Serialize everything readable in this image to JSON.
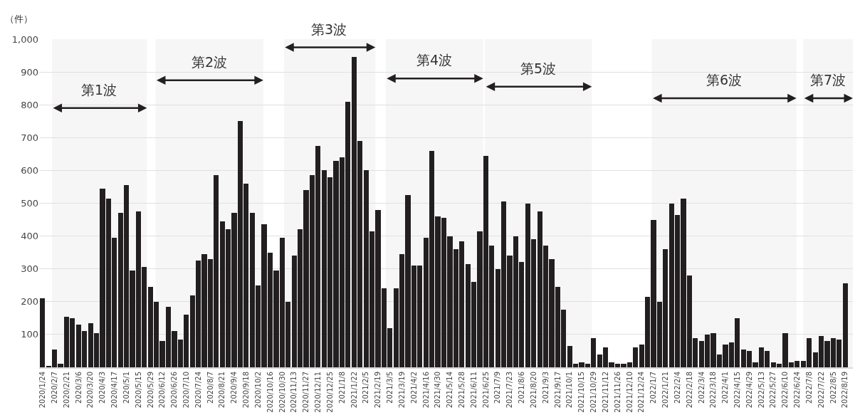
{
  "chart_data": {
    "type": "bar",
    "ylabel": "（件）",
    "color": "#231f20",
    "grid": "y",
    "x": [
      "2020-01-24",
      "2020-01-31",
      "2020-02-07",
      "2020-02-14",
      "2020-02-21",
      "2020-02-28",
      "2020-03-06",
      "2020-03-13",
      "2020-03-20",
      "2020-03-27",
      "2020-04-03",
      "2020-04-10",
      "2020-04-17",
      "2020-04-24",
      "2020-05-01",
      "2020-05-08",
      "2020-05-15",
      "2020-05-22",
      "2020-05-29",
      "2020-06-05",
      "2020-06-12",
      "2020-06-19",
      "2020-06-26",
      "2020-07-03",
      "2020-07-10",
      "2020-07-17",
      "2020-07-24",
      "2020-07-31",
      "2020-08-07",
      "2020-08-14",
      "2020-08-21",
      "2020-08-28",
      "2020-09-04",
      "2020-09-11",
      "2020-09-18",
      "2020-09-25",
      "2020-10-02",
      "2020-10-09",
      "2020-10-16",
      "2020-10-23",
      "2020-10-30",
      "2020-11-06",
      "2020-11-13",
      "2020-11-20",
      "2020-11-27",
      "2020-12-04",
      "2020-12-11",
      "2020-12-18",
      "2020-12-25",
      "2021-01-01",
      "2021-01-08",
      "2021-01-15",
      "2021-01-22",
      "2021-01-29",
      "2021-02-05",
      "2021-02-12",
      "2021-02-19",
      "2021-02-26",
      "2021-03-05",
      "2021-03-12",
      "2021-03-19",
      "2021-03-26",
      "2021-04-02",
      "2021-04-09",
      "2021-04-16",
      "2021-04-23",
      "2021-04-30",
      "2021-05-07",
      "2021-05-14",
      "2021-05-21",
      "2021-05-28",
      "2021-06-04",
      "2021-06-11",
      "2021-06-18",
      "2021-06-25",
      "2021-07-02",
      "2021-07-09",
      "2021-07-16",
      "2021-07-23",
      "2021-07-30",
      "2021-08-06",
      "2021-08-13",
      "2021-08-20",
      "2021-08-27",
      "2021-09-03",
      "2021-09-10",
      "2021-09-17",
      "2021-09-24",
      "2021-10-01",
      "2021-10-08",
      "2021-10-15",
      "2021-10-22",
      "2021-10-29",
      "2021-11-05",
      "2021-11-12",
      "2021-11-19",
      "2021-11-26",
      "2021-12-03",
      "2021-12-10",
      "2021-12-17",
      "2021-12-24",
      "2021-12-31",
      "2022-01-07",
      "2022-01-14",
      "2022-01-21",
      "2022-01-28",
      "2022-02-04",
      "2022-02-11",
      "2022-02-18",
      "2022-02-25",
      "2022-03-04",
      "2022-03-11",
      "2022-03-18",
      "2022-03-25",
      "2022-04-01",
      "2022-04-08",
      "2022-04-15",
      "2022-04-22",
      "2022-04-29",
      "2022-05-06",
      "2022-05-13",
      "2022-05-20",
      "2022-05-27",
      "2022-06-03",
      "2022-06-10",
      "2022-06-17",
      "2022-06-24",
      "2022-07-01",
      "2022-07-08",
      "2022-07-15",
      "2022-07-22",
      "2022-07-29",
      "2022-08-05",
      "2022-08-12",
      "2022-08-19"
    ],
    "values": [
      210,
      5,
      55,
      10,
      155,
      150,
      130,
      110,
      135,
      105,
      545,
      515,
      395,
      470,
      555,
      295,
      475,
      305,
      245,
      200,
      80,
      185,
      110,
      85,
      160,
      220,
      325,
      345,
      330,
      585,
      445,
      420,
      470,
      750,
      560,
      470,
      250,
      435,
      350,
      295,
      395,
      200,
      340,
      420,
      540,
      585,
      675,
      600,
      580,
      630,
      640,
      810,
      945,
      690,
      600,
      415,
      480,
      240,
      120,
      240,
      345,
      525,
      310,
      310,
      395,
      660,
      460,
      455,
      400,
      360,
      385,
      315,
      260,
      415,
      645,
      370,
      300,
      505,
      340,
      400,
      320,
      500,
      390,
      475,
      370,
      330,
      245,
      175,
      65,
      10,
      15,
      10,
      90,
      40,
      60,
      15,
      10,
      10,
      15,
      60,
      70,
      215,
      450,
      200,
      360,
      500,
      465,
      515,
      280,
      90,
      80,
      100,
      105,
      40,
      70,
      75,
      150,
      55,
      50,
      15,
      60,
      50,
      15,
      10,
      105,
      15,
      20,
      20,
      90,
      45,
      95,
      80,
      90,
      85,
      255
    ],
    "xlim": [
      "2020-01-20",
      "2022-08-28"
    ],
    "xticks": [
      {
        "value": "2020-01-24",
        "label": "2020/1/24"
      },
      {
        "value": "2020-02-07",
        "label": "2020/2/7"
      },
      {
        "value": "2020-02-21",
        "label": "2020/2/21"
      },
      {
        "value": "2020-03-06",
        "label": "2020/3/6"
      },
      {
        "value": "2020-03-20",
        "label": "2020/3/20"
      },
      {
        "value": "2020-04-03",
        "label": "2020/4/3"
      },
      {
        "value": "2020-04-17",
        "label": "2020/4/17"
      },
      {
        "value": "2020-05-01",
        "label": "2020/5/1"
      },
      {
        "value": "2020-05-15",
        "label": "2020/5/15"
      },
      {
        "value": "2020-05-29",
        "label": "2020/5/29"
      },
      {
        "value": "2020-06-12",
        "label": "2020/6/12"
      },
      {
        "value": "2020-06-26",
        "label": "2020/6/26"
      },
      {
        "value": "2020-07-10",
        "label": "2020/7/10"
      },
      {
        "value": "2020-07-24",
        "label": "2020/7/24"
      },
      {
        "value": "2020-08-07",
        "label": "2020/8/7"
      },
      {
        "value": "2020-08-21",
        "label": "2020/8/21"
      },
      {
        "value": "2020-09-04",
        "label": "2020/9/4"
      },
      {
        "value": "2020-09-18",
        "label": "2020/9/18"
      },
      {
        "value": "2020-10-02",
        "label": "2020/10/2"
      },
      {
        "value": "2020-10-16",
        "label": "2020/10/16"
      },
      {
        "value": "2020-10-30",
        "label": "2020/10/30"
      },
      {
        "value": "2020-11-13",
        "label": "2020/11/13"
      },
      {
        "value": "2020-11-27",
        "label": "2020/11/27"
      },
      {
        "value": "2020-12-11",
        "label": "2020/12/11"
      },
      {
        "value": "2020-12-25",
        "label": "2020/12/25"
      },
      {
        "value": "2021-01-08",
        "label": "2021/1/8"
      },
      {
        "value": "2021-01-22",
        "label": "2021/1/22"
      },
      {
        "value": "2021-02-05",
        "label": "2021/2/5"
      },
      {
        "value": "2021-02-19",
        "label": "2021/2/19"
      },
      {
        "value": "2021-03-05",
        "label": "2021/3/5"
      },
      {
        "value": "2021-03-19",
        "label": "2021/3/19"
      },
      {
        "value": "2021-04-02",
        "label": "2021/4/2"
      },
      {
        "value": "2021-04-16",
        "label": "2021/4/16"
      },
      {
        "value": "2021-04-30",
        "label": "2021/4/30"
      },
      {
        "value": "2021-05-14",
        "label": "2021/5/14"
      },
      {
        "value": "2021-05-28",
        "label": "2021/5/28"
      },
      {
        "value": "2021-06-11",
        "label": "2021/6/11"
      },
      {
        "value": "2021-06-25",
        "label": "2021/6/25"
      },
      {
        "value": "2021-07-09",
        "label": "2021/7/9"
      },
      {
        "value": "2021-07-23",
        "label": "2021/7/23"
      },
      {
        "value": "2021-08-06",
        "label": "2021/8/6"
      },
      {
        "value": "2021-08-20",
        "label": "2021/8/20"
      },
      {
        "value": "2021-09-03",
        "label": "2021/9/3"
      },
      {
        "value": "2021-09-17",
        "label": "2021/9/17"
      },
      {
        "value": "2021-10-01",
        "label": "2021/10/1"
      },
      {
        "value": "2021-10-15",
        "label": "2021/10/15"
      },
      {
        "value": "2021-10-29",
        "label": "2021/10/29"
      },
      {
        "value": "2021-11-12",
        "label": "2021/11/12"
      },
      {
        "value": "2021-11-26",
        "label": "2021/11/26"
      },
      {
        "value": "2021-12-10",
        "label": "2021/12/10"
      },
      {
        "value": "2021-12-24",
        "label": "2021/12/24"
      },
      {
        "value": "2022-01-07",
        "label": "2022/1/7"
      },
      {
        "value": "2022-01-21",
        "label": "2022/1/21"
      },
      {
        "value": "2022-02-04",
        "label": "2022/2/4"
      },
      {
        "value": "2022-02-18",
        "label": "2022/2/18"
      },
      {
        "value": "2022-03-04",
        "label": "2022/3/4"
      },
      {
        "value": "2022-03-18",
        "label": "2022/3/18"
      },
      {
        "value": "2022-04-01",
        "label": "2022/4/1"
      },
      {
        "value": "2022-04-15",
        "label": "2022/4/15"
      },
      {
        "value": "2022-04-29",
        "label": "2022/4/29"
      },
      {
        "value": "2022-05-13",
        "label": "2022/5/13"
      },
      {
        "value": "2022-05-27",
        "label": "2022/5/27"
      },
      {
        "value": "2022-06-10",
        "label": "2022/6/10"
      },
      {
        "value": "2022-06-24",
        "label": "2022/6/24"
      },
      {
        "value": "2022-07-08",
        "label": "2022/7/8"
      },
      {
        "value": "2022-07-22",
        "label": "2022/7/22"
      },
      {
        "value": "2022-08-05",
        "label": "2022/8/5"
      },
      {
        "value": "2022-08-19",
        "label": "2022/8/19"
      }
    ],
    "ylim": [
      0,
      1000
    ],
    "yticks": [
      100,
      200,
      300,
      400,
      500,
      600,
      700,
      800,
      900,
      {
        "value": 1000,
        "label": "1,000"
      }
    ],
    "bands": [
      {
        "axis": "x",
        "from": "2020-02-04",
        "to": "2020-05-25",
        "label": "第1波"
      },
      {
        "axis": "x",
        "from": "2020-06-04",
        "to": "2020-10-08",
        "label": "第2波"
      },
      {
        "axis": "x",
        "from": "2020-11-01",
        "to": "2021-02-16",
        "label": "第3波"
      },
      {
        "axis": "x",
        "from": "2021-02-28",
        "to": "2021-06-22",
        "label": "第4波"
      },
      {
        "axis": "x",
        "from": "2021-06-24",
        "to": "2021-10-27",
        "label": "第5波"
      },
      {
        "axis": "x",
        "from": "2022-01-05",
        "to": "2022-06-23",
        "label": "第6波"
      },
      {
        "axis": "x",
        "from": "2022-07-01",
        "to": "2022-08-28",
        "label": "第7波"
      }
    ]
  }
}
